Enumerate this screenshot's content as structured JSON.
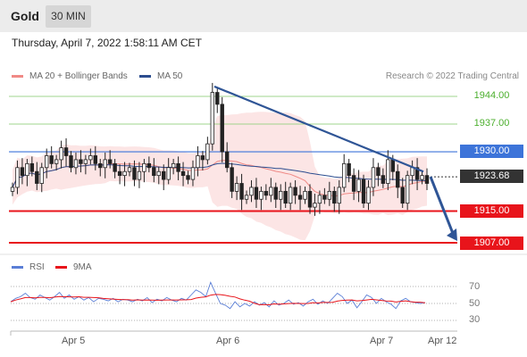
{
  "header": {
    "instrument": "Gold",
    "timeframe": "30 MIN",
    "datetime": "Thursday, April 7, 2022 1:58:11 AM CET"
  },
  "legend": {
    "ma20_label": "MA 20 + Bollinger Bands",
    "ma50_label": "MA 50",
    "credit": "Research © 2022 Trading Central",
    "colors": {
      "ma20": "#f08a86",
      "ma50": "#2c4d8f",
      "bands": "#fbdcdc"
    }
  },
  "rsi_legend": {
    "rsi_label": "RSI",
    "ma9_label": "9MA",
    "colors": {
      "rsi": "#5b7fd6",
      "ma9": "#e8141b"
    }
  },
  "levels": {
    "r2": "1944.00",
    "r1": "1937.00",
    "pivot": "1930.00",
    "last": "1923.68",
    "s1": "1915.00",
    "s2": "1907.00"
  },
  "rsi_ticks": [
    "70",
    "50",
    "30"
  ],
  "x_axis": [
    "Apr 5",
    "Apr 6",
    "Apr 7",
    "Apr 12"
  ],
  "chart_data": {
    "type": "candlestick",
    "levels": [
      1944.0,
      1937.0,
      1930.0,
      1923.68,
      1915.0,
      1907.0
    ],
    "level_colors": {
      "1944.00": "#4caf2e",
      "1937.00": "#4caf2e",
      "1930.00": "#3d74d9",
      "1923.68": "#333333",
      "1915.00": "#e8141b",
      "1907.00": "#e8141b"
    },
    "trendline": [
      1946.5,
      1925.0
    ],
    "forecast": [
      1923.68,
      1907.0
    ],
    "close": [
      1921,
      1926,
      1924,
      1927,
      1925,
      1922,
      1926,
      1929,
      1927,
      1928,
      1931,
      1929,
      1926,
      1928,
      1927,
      1928,
      1929,
      1927,
      1926,
      1928,
      1927,
      1925,
      1924,
      1925,
      1926,
      1923,
      1925,
      1927,
      1926,
      1924,
      1925,
      1923,
      1926,
      1927,
      1925,
      1924,
      1923,
      1926,
      1929,
      1928,
      1932,
      1945,
      1942,
      1930,
      1926,
      1920,
      1922,
      1918,
      1919,
      1921,
      1918,
      1920,
      1919,
      1921,
      1918,
      1920,
      1917,
      1921,
      1919,
      1918,
      1920,
      1916,
      1917,
      1919,
      1918,
      1920,
      1917,
      1921,
      1927,
      1924,
      1920,
      1923,
      1917,
      1921,
      1926,
      1924,
      1922,
      1928,
      1925,
      1921,
      1917,
      1924,
      1926,
      1923,
      1924,
      1922
    ],
    "rsi": [
      52,
      56,
      58,
      62,
      57,
      55,
      60,
      57,
      54,
      58,
      63,
      56,
      60,
      55,
      58,
      54,
      57,
      52,
      56,
      55,
      53,
      56,
      52,
      55,
      54,
      52,
      55,
      53,
      57,
      51,
      55,
      53,
      57,
      54,
      52,
      56,
      54,
      60,
      66,
      63,
      58,
      75,
      62,
      50,
      48,
      44,
      52,
      46,
      50,
      47,
      52,
      48,
      51,
      46,
      53,
      48,
      50,
      54,
      49,
      51,
      47,
      52,
      55,
      49,
      53,
      50,
      56,
      62,
      58,
      50,
      54,
      45,
      52,
      60,
      57,
      50,
      56,
      52,
      49,
      44,
      53,
      56,
      52,
      51,
      50,
      51
    ],
    "rsi_ticks": [
      70,
      50,
      30
    ]
  }
}
